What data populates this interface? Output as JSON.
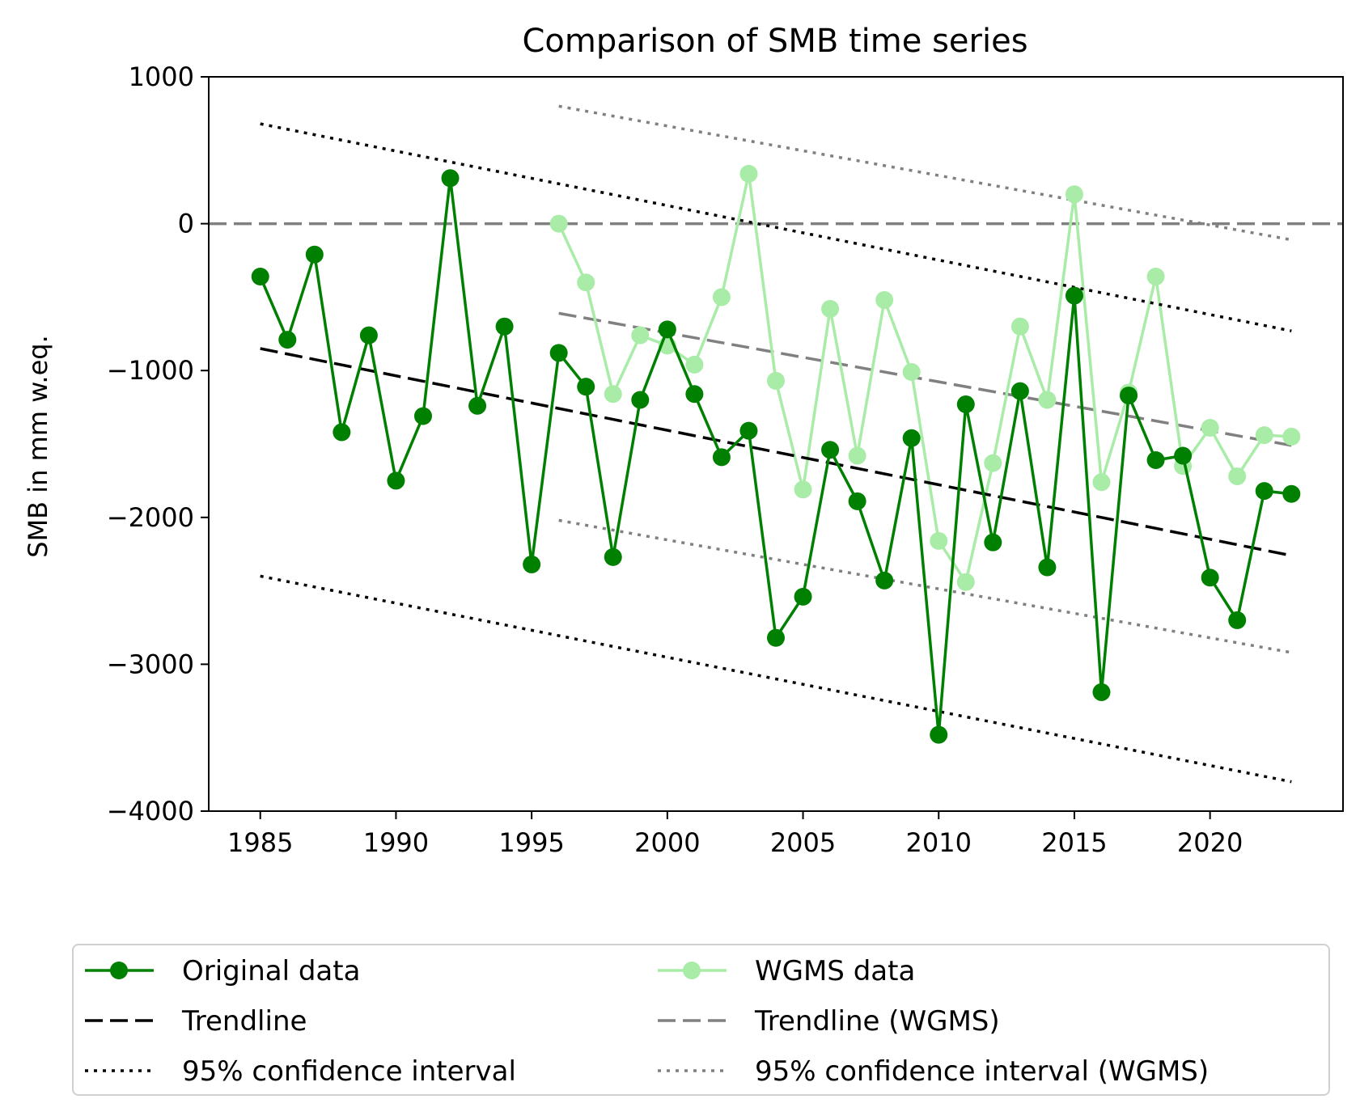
{
  "chart_data": {
    "type": "line",
    "title": "Comparison of SMB time series",
    "xlabel": "",
    "ylabel": "SMB in mm w.eq.",
    "xlim": [
      1983.1,
      2024.9
    ],
    "ylim": [
      -4000,
      1000
    ],
    "xticks": [
      1985,
      1990,
      1995,
      2000,
      2005,
      2010,
      2015,
      2020
    ],
    "yticks": [
      -4000,
      -3000,
      -2000,
      -1000,
      0,
      1000
    ],
    "ytick_labels": [
      "−4000",
      "−3000",
      "−2000",
      "−1000",
      "0",
      "1000"
    ],
    "grid": false,
    "legend_placement": "below",
    "zero_line": {
      "y": 0,
      "color": "#808080",
      "style": "dashed"
    },
    "series": [
      {
        "name": "Original data",
        "color": "#008000",
        "style": "solid",
        "marker": "circle",
        "x": [
          1985,
          1986,
          1987,
          1988,
          1989,
          1990,
          1991,
          1992,
          1993,
          1994,
          1995,
          1996,
          1997,
          1998,
          1999,
          2000,
          2001,
          2002,
          2003,
          2004,
          2005,
          2006,
          2007,
          2008,
          2009,
          2010,
          2011,
          2012,
          2013,
          2014,
          2015,
          2016,
          2017,
          2018,
          2019,
          2020,
          2021,
          2022,
          2023
        ],
        "y": [
          -360,
          -790,
          -210,
          -1420,
          -760,
          -1750,
          -1310,
          310,
          -1240,
          -700,
          -2320,
          -880,
          -1110,
          -2270,
          -1200,
          -720,
          -1160,
          -1590,
          -1410,
          -2820,
          -2540,
          -1540,
          -1890,
          -2430,
          -1460,
          -3480,
          -1230,
          -2170,
          -1140,
          -2340,
          -490,
          -3190,
          -1170,
          -1610,
          -1580,
          -2410,
          -2700,
          -1820,
          -1840
        ]
      },
      {
        "name": "Trendline",
        "color": "#000000",
        "style": "dashed",
        "x": [
          1985,
          2023
        ],
        "y": [
          -850,
          -2260
        ]
      },
      {
        "name": "95% confidence interval",
        "color": "#000000",
        "style": "dotted",
        "lines": [
          {
            "x": [
              1985,
              2023
            ],
            "y": [
              680,
              -730
            ]
          },
          {
            "x": [
              1985,
              2023
            ],
            "y": [
              -2400,
              -3800
            ]
          }
        ]
      },
      {
        "name": "WGMS data",
        "color": "#a8eca8",
        "style": "solid",
        "marker": "circle",
        "x": [
          1996,
          1997,
          1998,
          1999,
          2000,
          2001,
          2002,
          2003,
          2004,
          2005,
          2006,
          2007,
          2008,
          2009,
          2010,
          2011,
          2012,
          2013,
          2014,
          2015,
          2016,
          2017,
          2018,
          2019,
          2020,
          2021,
          2022,
          2023
        ],
        "y": [
          0,
          -400,
          -1160,
          -760,
          -830,
          -960,
          -500,
          340,
          -1070,
          -1810,
          -580,
          -1580,
          -520,
          -1010,
          -2160,
          -2440,
          -1630,
          -700,
          -1200,
          200,
          -1760,
          -1150,
          -360,
          -1650,
          -1390,
          -1720,
          -1440,
          -1450
        ]
      },
      {
        "name": "Trendline (WGMS)",
        "color": "#808080",
        "style": "dashed",
        "x": [
          1996,
          2023
        ],
        "y": [
          -610,
          -1510
        ]
      },
      {
        "name": "95% confidence interval (WGMS)",
        "color": "#808080",
        "style": "dotted",
        "lines": [
          {
            "x": [
              1996,
              2023
            ],
            "y": [
              800,
              -110
            ]
          },
          {
            "x": [
              1996,
              2023
            ],
            "y": [
              -2020,
              -2920
            ]
          }
        ]
      }
    ]
  }
}
